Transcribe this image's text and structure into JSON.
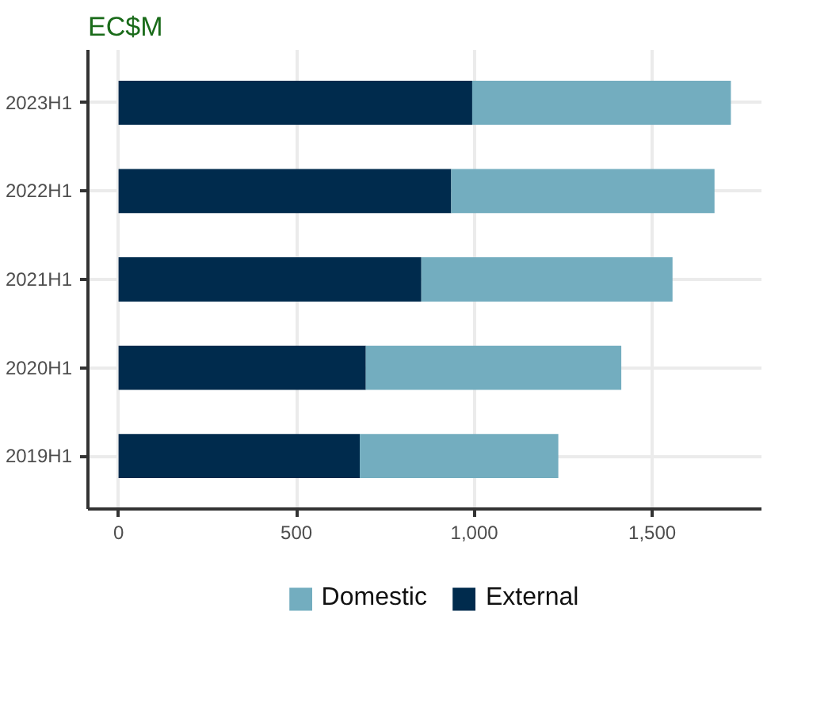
{
  "chart_data": {
    "type": "bar",
    "orientation": "horizontal",
    "stacked": true,
    "title": "EC$M",
    "categories": [
      "2023H1",
      "2022H1",
      "2021H1",
      "2020H1",
      "2019H1"
    ],
    "series": [
      {
        "name": "External",
        "color": "#002b4d",
        "values": [
          994,
          935,
          851,
          695,
          678
        ]
      },
      {
        "name": "Domestic",
        "color": "#73adbf",
        "values": [
          727,
          740,
          706,
          718,
          558
        ]
      }
    ],
    "xlim": [
      -86,
      1807
    ],
    "xticks": [
      {
        "value": 0,
        "label": "0"
      },
      {
        "value": 500,
        "label": "500"
      },
      {
        "value": 1000,
        "label": "1,000"
      },
      {
        "value": 1500,
        "label": "1,500"
      }
    ],
    "grid": true,
    "legend": "bottom"
  }
}
